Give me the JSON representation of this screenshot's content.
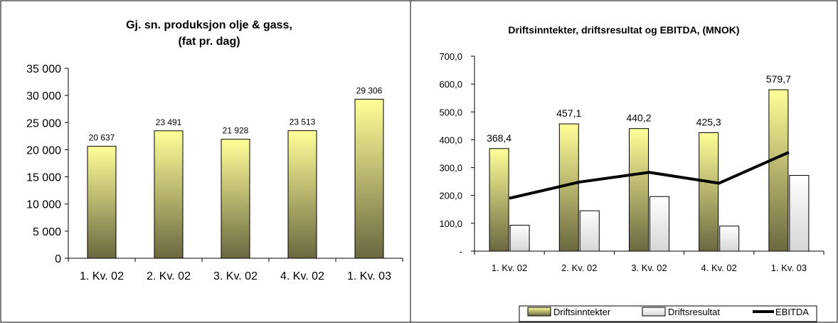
{
  "chart_data": [
    {
      "type": "bar",
      "title": "Gj. sn. produksjon olje & gass,",
      "subtitle": "(fat pr. dag)",
      "categories": [
        "1. Kv. 02",
        "2. Kv. 02",
        "3. Kv. 02",
        "4. Kv. 02",
        "1. Kv. 03"
      ],
      "values": [
        20637,
        23491,
        21928,
        23513,
        29306
      ],
      "value_labels": [
        "20 637",
        "23 491",
        "21 928",
        "23 513",
        "29 306"
      ],
      "yticks": [
        "0",
        "5 000",
        "10 000",
        "15 000",
        "20 000",
        "25 000",
        "30 000",
        "35 000"
      ],
      "ylim": [
        0,
        35000
      ],
      "grid": false,
      "colors": {
        "bar_top": "#FFFF99",
        "bar_bottom": "#6B6840"
      }
    },
    {
      "type": "bar",
      "title": "Driftsinntekter, driftsresultat og EBITDA, (MNOK)",
      "categories": [
        "1. Kv. 02",
        "2. Kv. 02",
        "3. Kv. 02",
        "4. Kv. 02",
        "1. Kv. 03"
      ],
      "series": [
        {
          "name": "Driftsinntekter",
          "kind": "bar",
          "values": [
            368.4,
            457.1,
            440.2,
            425.3,
            579.7
          ],
          "value_labels": [
            "368,4",
            "457,1",
            "440,2",
            "425,3",
            "579,7"
          ]
        },
        {
          "name": "Driftsresultat",
          "kind": "bar",
          "values": [
            93,
            145,
            196,
            90,
            272
          ]
        },
        {
          "name": "EBITDA",
          "kind": "line",
          "values": [
            190,
            248,
            283,
            244,
            355
          ]
        }
      ],
      "yticks": [
        "-",
        "100,0",
        "200,0",
        "300,0",
        "400,0",
        "500,0",
        "600,0",
        "700,0"
      ],
      "ylim": [
        0,
        700
      ],
      "grid": false,
      "legend": "bottom-right",
      "colors": {
        "bar1_top": "#FFFF99",
        "bar1_bottom": "#6B6840",
        "bar2_top": "#FFFFFF",
        "bar2_bottom": "#D6D6D6",
        "line": "#000000"
      }
    }
  ]
}
